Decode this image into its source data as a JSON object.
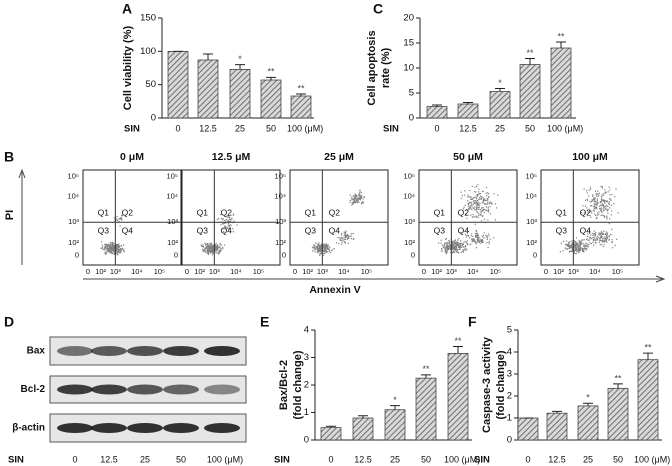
{
  "panel_labels": [
    "A",
    "B",
    "C",
    "D",
    "E",
    "F"
  ],
  "chart_data": [
    {
      "type": "bar",
      "y_label": [
        "Cell viability (%)"
      ],
      "x_label": "SIN",
      "categories": [
        "0",
        "12.5",
        "25",
        "50",
        "100 (μM)"
      ],
      "values": [
        100,
        87,
        73,
        57,
        33
      ],
      "errors": [
        0,
        9,
        7,
        4,
        3
      ],
      "annotations": [
        null,
        null,
        "*",
        "**",
        "**"
      ],
      "color": "#555555",
      "ylim": [
        0,
        150
      ],
      "yticks": [
        0,
        50,
        100,
        150
      ]
    },
    {
      "type": "bar",
      "y_label": [
        "Cell apoptosis",
        "rate (%)"
      ],
      "x_label": "SIN",
      "categories": [
        "0",
        "12.5",
        "25",
        "50",
        "100 (μM)"
      ],
      "values": [
        2.3,
        2.8,
        5.3,
        10.7,
        14
      ],
      "errors": [
        0.3,
        0.3,
        0.6,
        1.2,
        1.2
      ],
      "annotations": [
        null,
        null,
        "*",
        "**",
        "**"
      ],
      "color": "#555555",
      "ylim": [
        0,
        20
      ],
      "yticks": [
        0,
        5,
        10,
        15,
        20
      ]
    },
    {
      "type": "bar",
      "y_label": [
        "Bax/Bcl-2",
        "(fold change)"
      ],
      "x_label": "SIN",
      "categories": [
        "0",
        "12.5",
        "25",
        "50",
        "100 (μM)"
      ],
      "values": [
        0.45,
        0.8,
        1.1,
        2.25,
        3.15
      ],
      "errors": [
        0.05,
        0.08,
        0.15,
        0.12,
        0.25
      ],
      "annotations": [
        null,
        null,
        "*",
        "**",
        "**"
      ],
      "color": "#555555",
      "ylim": [
        0,
        4
      ],
      "yticks": [
        0,
        1,
        2,
        3,
        4
      ]
    },
    {
      "type": "bar",
      "y_label": [
        "Caspase-3 activity",
        "(fold change)"
      ],
      "x_label": "SIN",
      "categories": [
        "0",
        "12.5",
        "25",
        "50",
        "100 (μM)"
      ],
      "values": [
        1.0,
        1.22,
        1.55,
        2.35,
        3.65
      ],
      "errors": [
        0,
        0.08,
        0.12,
        0.2,
        0.3
      ],
      "annotations": [
        null,
        null,
        "*",
        "**",
        "**"
      ],
      "color": "#555555",
      "ylim": [
        0,
        5
      ],
      "yticks": [
        0,
        1,
        2,
        3,
        4,
        5
      ]
    }
  ],
  "flow": {
    "titles": [
      "0 μM",
      "12.5 μM",
      "25 μM",
      "50 μM",
      "100 μM"
    ],
    "y_label": "PI",
    "x_label": "Annexin V",
    "quadrants": [
      "Q1",
      "Q2",
      "Q3",
      "Q4"
    ],
    "yticks": [
      "10⁵",
      "10⁴",
      "10³",
      "10²",
      "0"
    ],
    "xticks": [
      "0",
      "10²",
      "10³",
      "10⁴",
      "10⁵"
    ]
  },
  "blot": {
    "rows": [
      "Bax",
      "Bcl-2",
      "β-actin"
    ],
    "x_label": "SIN",
    "categories": [
      "0",
      "12.5",
      "25",
      "50",
      "100 (μM)"
    ]
  }
}
